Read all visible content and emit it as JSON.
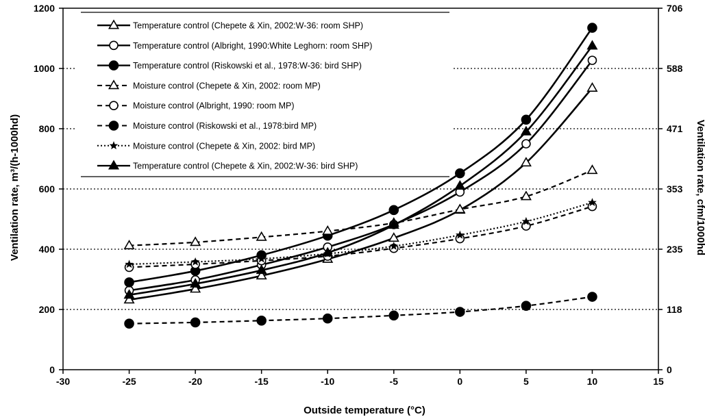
{
  "chart_data": {
    "type": "line",
    "title": "",
    "xlabel": "Outside temperature (°C)",
    "ylabel_left": "Ventilation rate, m³/(h-1000hd)",
    "ylabel_right": "Ventilation rate, cfm/1000hd",
    "xlim": [
      -30,
      15
    ],
    "ylim": [
      0,
      1200
    ],
    "x_ticks": [
      "-30",
      "-25",
      "-20",
      "-15",
      "-10",
      "-5",
      "0",
      "5",
      "10",
      "15"
    ],
    "y_ticks_left": [
      "0",
      "200",
      "400",
      "600",
      "800",
      "1000",
      "1200"
    ],
    "y_ticks_right": [
      "0",
      "118",
      "235",
      "353",
      "471",
      "588",
      "706"
    ],
    "gridlines": "horizontal dotted",
    "legend_position": "top-left",
    "x": [
      -25,
      -20,
      -15,
      -10,
      -5,
      0,
      5,
      10
    ],
    "series": [
      {
        "name": "Temperature control (Chepete & Xin, 2002:W-36: room SHP)",
        "marker": "triangle-open",
        "line": "solid",
        "values": [
          232,
          268,
          312,
          367,
          437,
          530,
          687,
          935
        ]
      },
      {
        "name": "Temperature control (Albright, 1990:White Leghorn: room SHP)",
        "marker": "circle-open",
        "line": "solid",
        "values": [
          263,
          298,
          348,
          407,
          482,
          590,
          750,
          1027
        ]
      },
      {
        "name": "Temperature control (Riskowski et al., 1978:W-36: bird SHP)",
        "marker": "circle-filled",
        "line": "solid",
        "values": [
          290,
          328,
          380,
          445,
          530,
          652,
          830,
          1135
        ]
      },
      {
        "name": "Moisture control (Chepete & Xin, 2002: room MP)",
        "marker": "triangle-open",
        "line": "dashed",
        "values": [
          412,
          423,
          440,
          460,
          487,
          532,
          575,
          662
        ]
      },
      {
        "name": "Moisture control (Albright, 1990: room MP)",
        "marker": "circle-open",
        "line": "dashed",
        "values": [
          340,
          350,
          362,
          377,
          403,
          435,
          477,
          542
        ]
      },
      {
        "name": "Moisture control (Riskowski et al., 1978:bird MP)",
        "marker": "circle-filled",
        "line": "dashed",
        "values": [
          153,
          157,
          163,
          170,
          180,
          192,
          212,
          242
        ]
      },
      {
        "name": "Moisture control (Chepete & Xin, 2002: bird MP)",
        "marker": "star-filled",
        "line": "dotted",
        "values": [
          350,
          358,
          368,
          385,
          410,
          447,
          492,
          555
        ]
      },
      {
        "name": "Temperature control (Chepete & Xin, 2002:W-36: bird SHP)",
        "marker": "triangle-filled",
        "line": "solid",
        "values": [
          248,
          285,
          330,
          388,
          480,
          610,
          790,
          1075
        ]
      }
    ]
  }
}
